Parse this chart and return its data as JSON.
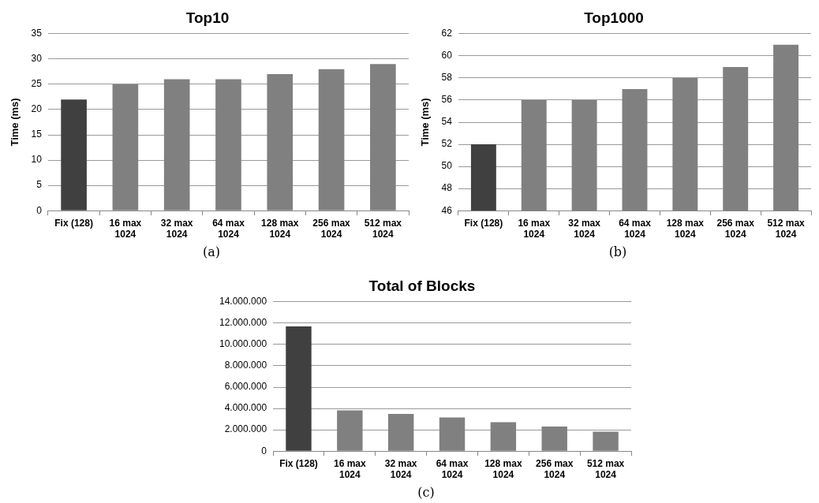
{
  "chart_data": [
    {
      "type": "bar",
      "title": "Top10",
      "ylabel": "Time (ms)",
      "categories": [
        "Fix (128)",
        "16 max 1024",
        "32 max 1024",
        "64 max 1024",
        "128 max 1024",
        "256 max 1024",
        "512 max 1024"
      ],
      "values": [
        22,
        25,
        26,
        26,
        27,
        28,
        29
      ],
      "colors": [
        "#404040",
        "#808080",
        "#808080",
        "#808080",
        "#808080",
        "#808080",
        "#808080"
      ],
      "ylim": [
        0,
        35
      ],
      "yticks": [
        0,
        5,
        10,
        15,
        20,
        25,
        30,
        35
      ],
      "grid": "y",
      "legend": false,
      "annotations": [
        "(a)"
      ]
    },
    {
      "type": "bar",
      "title": "Top1000",
      "ylabel": "Time (ms)",
      "categories": [
        "Fix (128)",
        "16 max 1024",
        "32 max 1024",
        "64 max 1024",
        "128 max 1024",
        "256 max 1024",
        "512 max 1024"
      ],
      "values": [
        52,
        56,
        56,
        57,
        58,
        59,
        61
      ],
      "colors": [
        "#404040",
        "#808080",
        "#808080",
        "#808080",
        "#808080",
        "#808080",
        "#808080"
      ],
      "ylim": [
        46,
        62
      ],
      "yticks": [
        46,
        48,
        50,
        52,
        54,
        56,
        58,
        60,
        62
      ],
      "grid": "y",
      "legend": false,
      "annotations": [
        "(b)"
      ]
    },
    {
      "type": "bar",
      "title": "Total of Blocks",
      "categories": [
        "Fix (128)",
        "16 max 1024",
        "32 max 1024",
        "64 max 1024",
        "128 max 1024",
        "256 max 1024",
        "512 max 1024"
      ],
      "values": [
        11700000,
        3820000,
        3490000,
        3160000,
        2720000,
        2300000,
        1820000
      ],
      "colors": [
        "#404040",
        "#808080",
        "#808080",
        "#808080",
        "#808080",
        "#808080",
        "#808080"
      ],
      "ylim": [
        0,
        14000000
      ],
      "yticks": [
        0,
        {
          "value": 2000000,
          "label": "2.000.000"
        },
        {
          "value": 4000000,
          "label": "4.000.000"
        },
        {
          "value": 6000000,
          "label": "6.000.000"
        },
        {
          "value": 8000000,
          "label": "8.000.000"
        },
        {
          "value": 10000000,
          "label": "10.000.000"
        },
        {
          "value": 12000000,
          "label": "12.000.000"
        },
        {
          "value": 14000000,
          "label": "14.000.000"
        }
      ],
      "grid": "y",
      "legend": false,
      "annotations": [
        "(c)"
      ]
    }
  ]
}
